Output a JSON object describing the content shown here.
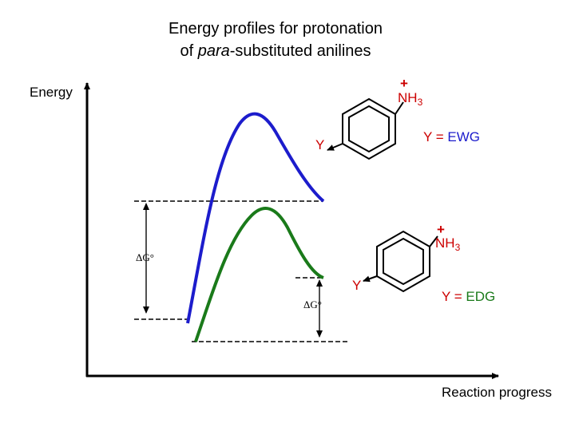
{
  "title": {
    "line1": "Energy profiles for protonation",
    "line2_prefix": "of",
    "line2_italic": "para",
    "line2_suffix": "-substituted anilines"
  },
  "axes": {
    "y_label": "Energy",
    "x_label": "Reaction progress"
  },
  "profiles": [
    {
      "substituent_label": "Y",
      "legend_y": "Y =",
      "legend_group": "EWG",
      "charge": "+",
      "group": "NH",
      "subscript": "3",
      "delta_g": "ΔG°"
    },
    {
      "substituent_label": "Y",
      "legend_y": "Y =",
      "legend_group": "EDG",
      "charge": "+",
      "group": "NH",
      "subscript": "3",
      "delta_g": "ΔG°"
    }
  ]
}
